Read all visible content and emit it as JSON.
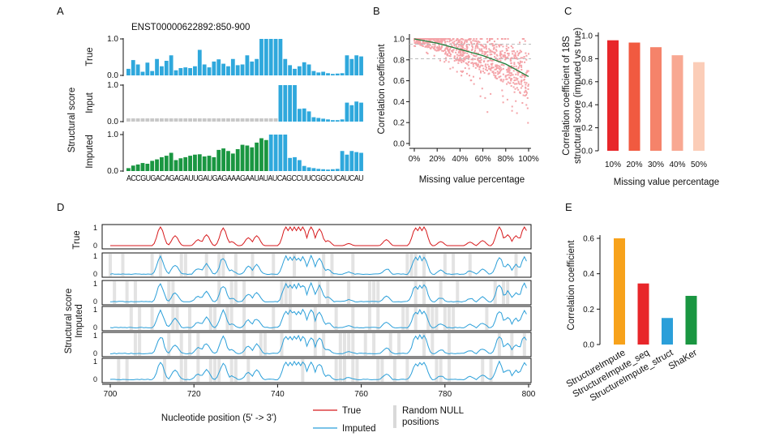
{
  "panels": {
    "A": {
      "letter": "A",
      "title": "ENST00000622892:850-900",
      "ylabel": "Structural score",
      "row_labels": [
        "True",
        "Input",
        "Imputed"
      ],
      "sequence": "ACCGUGACAGAGAUUGAUGAGAAAGAAUAUAUCAGCCUUCGGCUCAUCAU",
      "colors": {
        "true": "#2fa8dc",
        "input_missing": "#c8c8c8",
        "imputed": "#1a9641"
      }
    },
    "B": {
      "letter": "B",
      "xlabel": "Missing value percentage",
      "ylabel": "Correlation coefficient",
      "xticks": [
        "0%",
        "20%",
        "40%",
        "60%",
        "80%",
        "100%"
      ],
      "yticks": [
        "0.0",
        "0.2",
        "0.4",
        "0.6",
        "0.8",
        "1.0"
      ],
      "colors": {
        "points": "#f4a3a8",
        "trend": "#1b7f3a",
        "ref": "#bbbbbb"
      }
    },
    "C": {
      "letter": "C",
      "xlabel": "Missing value percentage",
      "ylabel_line1": "Correlation coefficient of 18S",
      "ylabel_line2": "structural score (imputed vs true)",
      "yticks": [
        "0.0",
        "0.2",
        "0.4",
        "0.6",
        "0.8",
        "1.0"
      ]
    },
    "D": {
      "letter": "D",
      "xlabel": "Nucleotide position (5' -> 3')",
      "ylabel_line1": "Structural score",
      "ylabel_line2": "Imputed",
      "row_true_label": "True",
      "xticks": [
        "700",
        "720",
        "740",
        "760",
        "780",
        "800"
      ],
      "legend": {
        "true": "True",
        "imputed": "Imputed",
        "null_line1": "Random NULL",
        "null_line2": "positions"
      },
      "colors": {
        "true": "#d7191c",
        "imputed": "#2b9fd9",
        "null": "#e3e3e3"
      }
    },
    "E": {
      "letter": "E",
      "ylabel": "Correlation coefficient",
      "yticks": [
        "0.0",
        "0.2",
        "0.4",
        "0.6"
      ]
    }
  },
  "chart_data": [
    {
      "panel": "A",
      "type": "bar",
      "title": "ENST00000622892:850-900",
      "ylabel": "Structural score",
      "ylim": [
        0,
        1.0
      ],
      "sequence": "ACCGUGACAGAGAUUGAUGAGAAAGAAUAUAUCAGCCUUCGGCUCAUCAU",
      "series": [
        {
          "name": "True",
          "values": [
            0.18,
            0.42,
            0.3,
            0.1,
            0.35,
            0.12,
            0.45,
            0.25,
            0.4,
            0.55,
            0.14,
            0.2,
            0.22,
            0.2,
            0.25,
            0.7,
            0.3,
            0.22,
            0.38,
            0.44,
            0.32,
            0.25,
            0.45,
            0.28,
            0.3,
            0.55,
            0.38,
            0.45,
            1.0,
            1.0,
            1.0,
            1.0,
            1.0,
            0.45,
            0.28,
            0.18,
            0.25,
            0.36,
            0.3,
            0.12,
            0.08,
            0.1,
            0.06,
            0.04,
            0.05,
            0.06,
            0.55,
            0.45,
            0.55,
            0.52
          ]
        },
        {
          "name": "Input",
          "values": [
            null,
            null,
            null,
            null,
            null,
            null,
            null,
            null,
            null,
            null,
            null,
            null,
            null,
            null,
            null,
            null,
            null,
            null,
            null,
            null,
            null,
            null,
            null,
            null,
            null,
            null,
            null,
            null,
            null,
            null,
            null,
            null,
            1.0,
            1.0,
            1.0,
            1.0,
            0.35,
            0.36,
            0.28,
            0.12,
            0.1,
            0.08,
            0.06,
            0.04,
            0.04,
            0.06,
            0.52,
            0.45,
            0.55,
            0.52
          ]
        },
        {
          "name": "Imputed",
          "values": [
            0.08,
            0.15,
            0.18,
            0.22,
            0.2,
            0.28,
            0.32,
            0.38,
            0.42,
            0.5,
            0.3,
            0.35,
            0.38,
            0.42,
            0.45,
            0.46,
            0.4,
            0.42,
            0.38,
            0.58,
            0.62,
            0.55,
            0.48,
            0.6,
            0.72,
            0.7,
            0.65,
            0.78,
            0.9,
            0.85,
            1.0,
            1.0,
            1.0,
            1.0,
            0.36,
            0.38,
            0.3,
            0.14,
            0.1,
            0.08,
            0.06,
            0.05,
            0.04,
            0.05,
            0.06,
            0.55,
            0.45,
            0.55,
            0.52,
            0.5
          ]
        }
      ]
    },
    {
      "panel": "B",
      "type": "scatter",
      "xlabel": "Missing value percentage",
      "ylabel": "Correlation coefficient",
      "xlim": [
        0,
        100
      ],
      "ylim": [
        0,
        1.0
      ],
      "reference_lines": [
        0.95,
        0.81
      ],
      "trend": {
        "x": [
          0,
          10,
          20,
          30,
          40,
          50,
          60,
          70,
          80,
          90,
          100
        ],
        "y": [
          1.0,
          0.98,
          0.96,
          0.93,
          0.9,
          0.87,
          0.84,
          0.8,
          0.76,
          0.7,
          0.64
        ]
      }
    },
    {
      "panel": "C",
      "type": "bar",
      "categories": [
        "10%",
        "20%",
        "30%",
        "40%",
        "50%"
      ],
      "values": [
        0.96,
        0.94,
        0.9,
        0.83,
        0.77
      ],
      "colors": [
        "#e8262a",
        "#f15a40",
        "#f5836a",
        "#f8a892",
        "#fbcdb8"
      ],
      "xlabel": "Missing value percentage",
      "ylabel": "Correlation coefficient of 18S structural score (imputed vs true)",
      "ylim": [
        0,
        1.0
      ]
    },
    {
      "panel": "D",
      "type": "line",
      "xlabel": "Nucleotide position (5' -> 3')",
      "xlim": [
        700,
        800
      ],
      "ylim": [
        0,
        1
      ],
      "series": [
        {
          "name": "True",
          "rows": 1
        },
        {
          "name": "Imputed",
          "rows": 5
        },
        {
          "name": "Random NULL positions"
        }
      ]
    },
    {
      "panel": "E",
      "type": "bar",
      "categories": [
        "StructureImpute",
        "StructureImpute_seq",
        "StructureImpute_struct",
        "ShaKer"
      ],
      "values": [
        0.6,
        0.345,
        0.15,
        0.275
      ],
      "colors": [
        "#f7a21b",
        "#e8262a",
        "#2b9fd9",
        "#1a9641"
      ],
      "ylabel": "Correlation coefficient",
      "ylim": [
        0,
        0.65
      ]
    }
  ]
}
